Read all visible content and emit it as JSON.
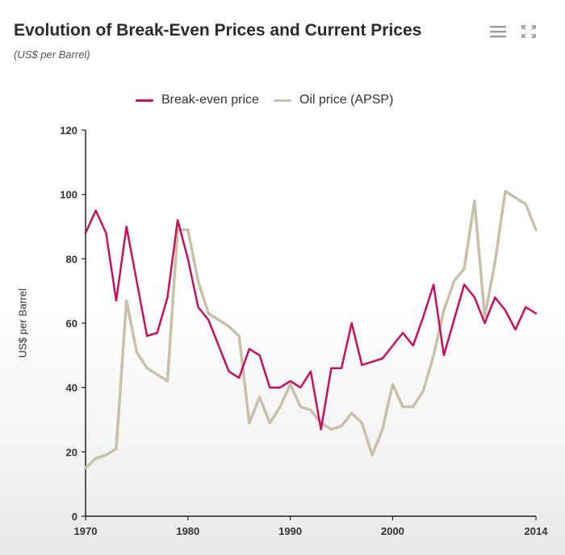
{
  "header": {
    "title": "Evolution of Break-Even Prices and Current Prices",
    "subtitle": "(US$ per Barrel)",
    "menu_icon": "hamburger-menu-icon",
    "expand_icon": "fullscreen-icon"
  },
  "colors": {
    "break_even": "#c8105a",
    "oil_price": "#c8c0a8",
    "axis": "#222222",
    "tick_text": "#333333"
  },
  "chart_data": {
    "type": "line",
    "title": "Evolution of Break-Even Prices and Current Prices",
    "subtitle": "(US$ per Barrel)",
    "xlabel": "",
    "ylabel": "US$ per Barrel",
    "xlim": [
      1970,
      2014
    ],
    "ylim": [
      0,
      120
    ],
    "x_ticks": [
      1970,
      1980,
      1990,
      2000,
      2014
    ],
    "y_ticks": [
      0,
      20,
      40,
      60,
      80,
      100,
      120
    ],
    "grid": false,
    "legend_position": "top-center",
    "x": [
      1970,
      1971,
      1972,
      1973,
      1974,
      1975,
      1976,
      1977,
      1978,
      1979,
      1980,
      1981,
      1982,
      1983,
      1984,
      1985,
      1986,
      1987,
      1988,
      1989,
      1990,
      1991,
      1992,
      1993,
      1994,
      1995,
      1996,
      1997,
      1998,
      1999,
      2000,
      2001,
      2002,
      2003,
      2004,
      2005,
      2006,
      2007,
      2008,
      2009,
      2010,
      2011,
      2012,
      2013,
      2014
    ],
    "series": [
      {
        "name": "Break-even price",
        "color": "#c8105a",
        "values": [
          88,
          95,
          88,
          67,
          90,
          73,
          56,
          57,
          68,
          92,
          80,
          65,
          61,
          53,
          45,
          43,
          52,
          50,
          40,
          40,
          42,
          40,
          45,
          27,
          46,
          46,
          60,
          47,
          48,
          49,
          53,
          57,
          53,
          62,
          72,
          50,
          61,
          72,
          68,
          60,
          68,
          64,
          58,
          65,
          63
        ]
      },
      {
        "name": "Oil price (APSP)",
        "color": "#c8c0a8",
        "values": [
          15,
          18,
          19,
          21,
          67,
          51,
          46,
          44,
          42,
          89,
          89,
          73,
          63,
          61,
          59,
          56,
          29,
          37,
          29,
          34,
          41,
          34,
          33,
          29,
          27,
          28,
          32,
          29,
          19,
          27,
          41,
          34,
          34,
          39,
          50,
          64,
          73,
          77,
          98,
          62,
          79,
          101,
          99,
          97,
          89
        ]
      }
    ]
  }
}
